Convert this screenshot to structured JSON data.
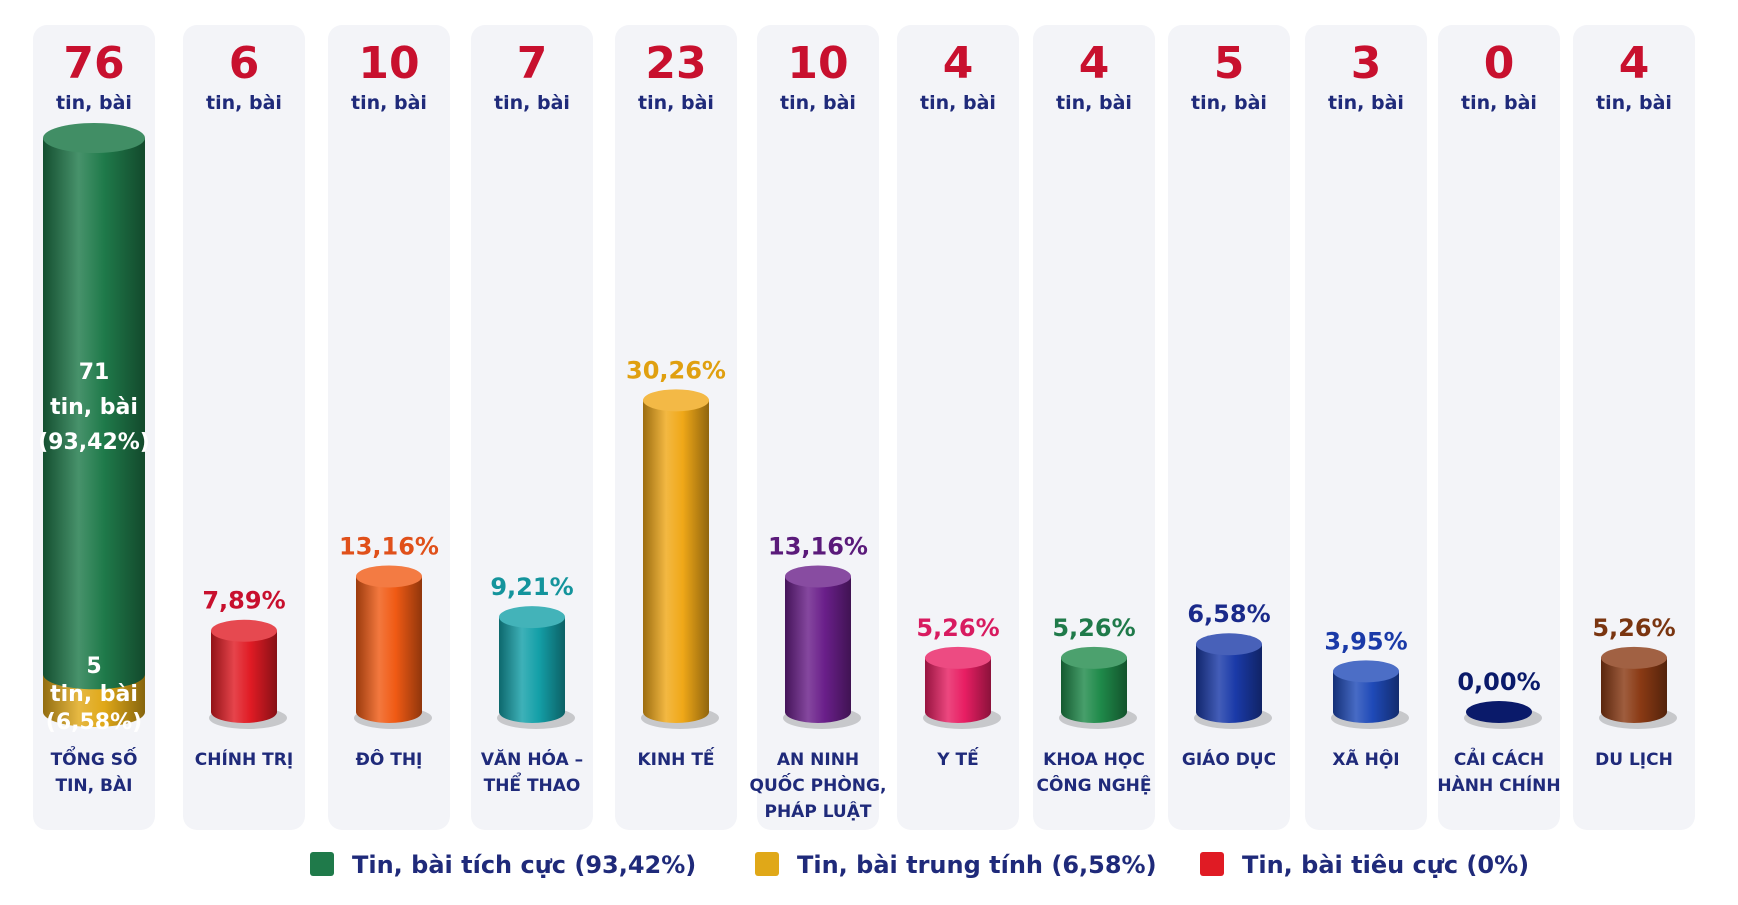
{
  "unit_label": "tin, bài",
  "chart_data": {
    "type": "bar",
    "categories": [
      "TỔNG SỐ TIN, BÀI",
      "CHÍNH TRỊ",
      "ĐÔ THỊ",
      "VĂN HÓA – THỂ THAO",
      "KINH TẾ",
      "AN NINH QUỐC PHÒNG, PHÁP LUẬT",
      "Y TẾ",
      "KHOA HỌC CÔNG NGHỆ",
      "GIÁO DỤC",
      "XÃ HỘI",
      "CẢI CÁCH HÀNH CHÍNH",
      "DU LỊCH"
    ],
    "category_lines": [
      [
        "TỔNG SỐ",
        "TIN, BÀI"
      ],
      [
        "CHÍNH TRỊ"
      ],
      [
        "ĐÔ THỊ"
      ],
      [
        "VĂN HÓA –",
        "THỂ THAO"
      ],
      [
        "KINH TẾ"
      ],
      [
        "AN NINH",
        "QUỐC PHÒNG,",
        "PHÁP LUẬT"
      ],
      [
        "Y TẾ"
      ],
      [
        "KHOA HỌC",
        "CÔNG NGHỆ"
      ],
      [
        "GIÁO DỤC"
      ],
      [
        "XÃ HỘI"
      ],
      [
        "CẢI CÁCH",
        "HÀNH CHÍNH"
      ],
      [
        "DU LỊCH"
      ]
    ],
    "counts": [
      76,
      6,
      10,
      7,
      23,
      10,
      4,
      4,
      5,
      3,
      0,
      4
    ],
    "percent_values": [
      100,
      7.89,
      13.16,
      9.21,
      30.26,
      13.16,
      5.26,
      5.26,
      6.58,
      3.95,
      0,
      5.26
    ],
    "percent_labels": [
      "",
      "7,89%",
      "13,16%",
      "9,21%",
      "30,26%",
      "13,16%",
      "5,26%",
      "5,26%",
      "6,58%",
      "3,95%",
      "0,00%",
      "5,26%"
    ],
    "colors": [
      "#1f7a4a",
      "#e01b24",
      "#f05a14",
      "#14a0a8",
      "#f0a818",
      "#6a1f8a",
      "#e81e63",
      "#1f8a4a",
      "#1a3aa8",
      "#1f4ab8",
      "#0a1a6a",
      "#8a3a14"
    ],
    "label_colors": [
      "#1f7a4a",
      "#c8102e",
      "#e0501a",
      "#14949c",
      "#e0a010",
      "#5a1a7a",
      "#d81b60",
      "#1f7a4a",
      "#1a2a8a",
      "#1a3aa8",
      "#0a1a6a",
      "#7a3510"
    ],
    "total_breakdown": [
      {
        "name": "Tin, bài tích cực",
        "value": 71,
        "percent": "(93,42%)",
        "color": "#1f7a4a"
      },
      {
        "name": "Tin, bài trung tính",
        "value": 5,
        "percent": "(6,58%)",
        "color": "#e0a818"
      }
    ]
  },
  "legend": [
    {
      "label": "Tin, bài tích cực (93,42%)",
      "color": "#1f7a4a"
    },
    {
      "label": "Tin, bài trung tính (6,58%)",
      "color": "#e0a818"
    },
    {
      "label": "Tin, bài tiêu cực (0%)",
      "color": "#e01b24"
    }
  ]
}
